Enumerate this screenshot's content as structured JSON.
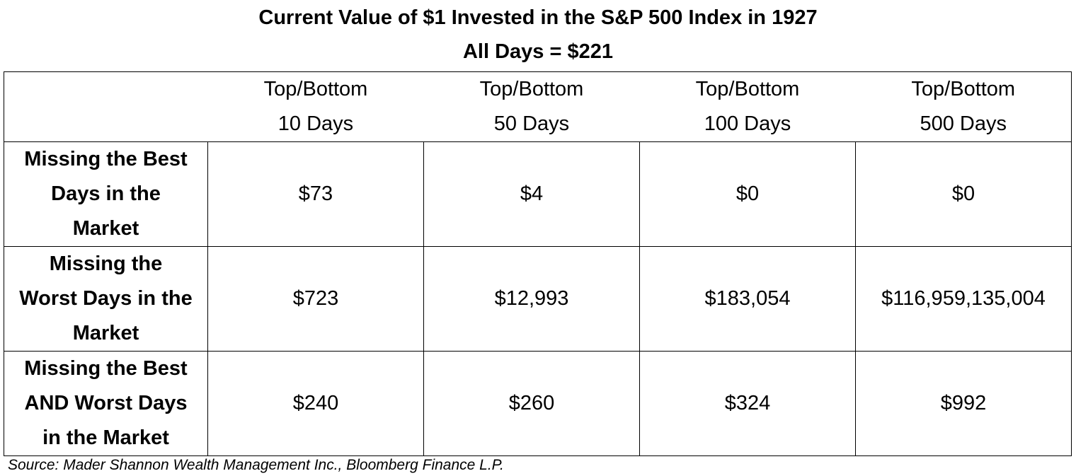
{
  "chart_data": {
    "type": "table",
    "title": "Current Value of $1 Invested in the S&P 500 Index in 1927",
    "subtitle": "All Days = $221",
    "columns": [
      [
        "Top/Bottom",
        "10 Days"
      ],
      [
        "Top/Bottom",
        "50 Days"
      ],
      [
        "Top/Bottom",
        "100 Days"
      ],
      [
        "Top/Bottom",
        "500 Days"
      ]
    ],
    "rows": [
      {
        "label_lines": [
          "Missing the Best",
          "Days in the",
          "Market"
        ],
        "values": [
          "$73",
          "$4",
          "$0",
          "$0"
        ]
      },
      {
        "label_lines": [
          "Missing the",
          "Worst Days in the",
          "Market"
        ],
        "values": [
          "$723",
          "$12,993",
          "$183,054",
          "$116,959,135,004"
        ]
      },
      {
        "label_lines": [
          "Missing the Best",
          "AND Worst Days",
          "in the Market"
        ],
        "values": [
          "$240",
          "$260",
          "$324",
          "$992"
        ]
      }
    ]
  },
  "source": "Source: Mader Shannon Wealth Management Inc., Bloomberg Finance L.P."
}
